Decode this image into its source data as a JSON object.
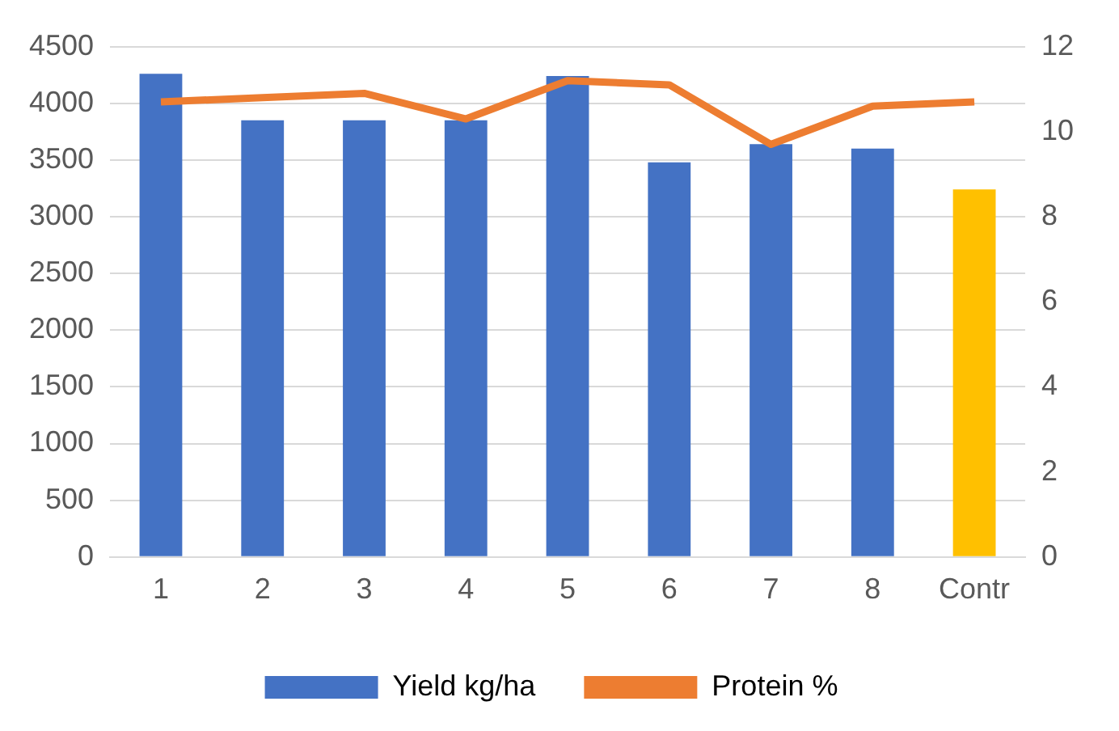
{
  "chart_data": {
    "type": "bar",
    "categories": [
      "1",
      "2",
      "3",
      "4",
      "5",
      "6",
      "7",
      "8",
      "Contr"
    ],
    "series": [
      {
        "name": "Yield kg/ha",
        "color": "#4472c4",
        "colors": [
          "#4472c4",
          "#4472c4",
          "#4472c4",
          "#4472c4",
          "#4472c4",
          "#4472c4",
          "#4472c4",
          "#4472c4",
          "#ffc000"
        ],
        "values": [
          4260,
          3850,
          3850,
          3850,
          4240,
          3480,
          3640,
          3600,
          3240
        ]
      },
      {
        "name": "Protein %",
        "type": "line",
        "color": "#ed7d31",
        "axis": "y2",
        "marker": "none",
        "values": [
          10.7,
          10.8,
          10.9,
          10.3,
          11.2,
          11.1,
          9.7,
          10.6,
          10.7
        ]
      }
    ],
    "ylim": [
      0,
      4500
    ],
    "yticks": [
      0,
      500,
      1000,
      1500,
      2000,
      2500,
      3000,
      3500,
      4000,
      4500
    ],
    "y2lim": [
      0,
      12
    ],
    "y2ticks": [
      0,
      2,
      4,
      6,
      8,
      10,
      12
    ],
    "grid": "y",
    "legend": "bottom"
  }
}
